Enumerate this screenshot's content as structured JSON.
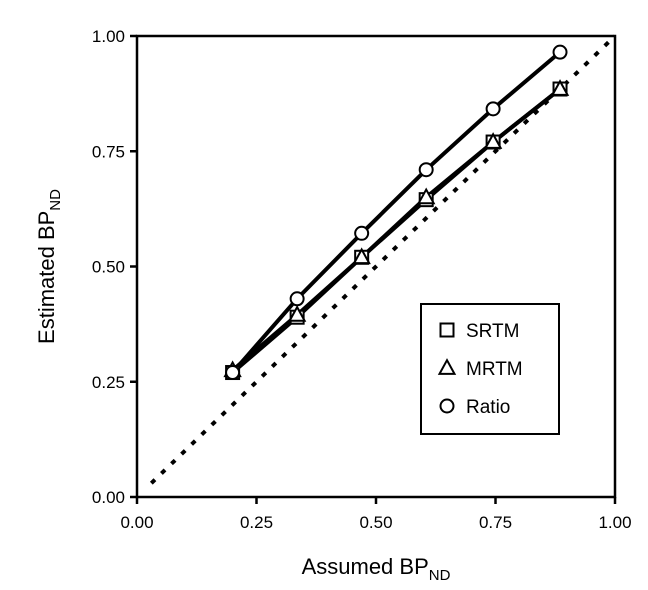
{
  "chart_data": {
    "type": "line",
    "x": [
      0.2,
      0.335,
      0.47,
      0.605,
      0.745,
      0.885
    ],
    "xlabel": "Assumed BP",
    "xlabel_sub": "ND",
    "ylabel": "Estimated BP",
    "ylabel_sub": "ND",
    "xlim": [
      0.0,
      1.0
    ],
    "ylim": [
      0.0,
      1.0
    ],
    "xticks": [
      "0.00",
      "0.25",
      "0.50",
      "0.75",
      "1.00"
    ],
    "yticks": [
      "0.00",
      "0.25",
      "0.50",
      "0.75",
      "1.00"
    ],
    "grid": false,
    "legend_position": "lower-right",
    "identity_line": {
      "style": "dotted",
      "x": [
        0.03,
        1.0
      ],
      "y": [
        0.03,
        1.0
      ]
    },
    "series": [
      {
        "name": "SRTM",
        "marker": "square",
        "values": [
          0.27,
          0.39,
          0.52,
          0.645,
          0.77,
          0.885
        ]
      },
      {
        "name": "MRTM",
        "marker": "triangle",
        "values": [
          0.275,
          0.395,
          0.52,
          0.65,
          0.77,
          0.885
        ]
      },
      {
        "name": "Ratio",
        "marker": "circle",
        "values": [
          0.27,
          0.43,
          0.572,
          0.71,
          0.842,
          0.965
        ]
      }
    ]
  }
}
